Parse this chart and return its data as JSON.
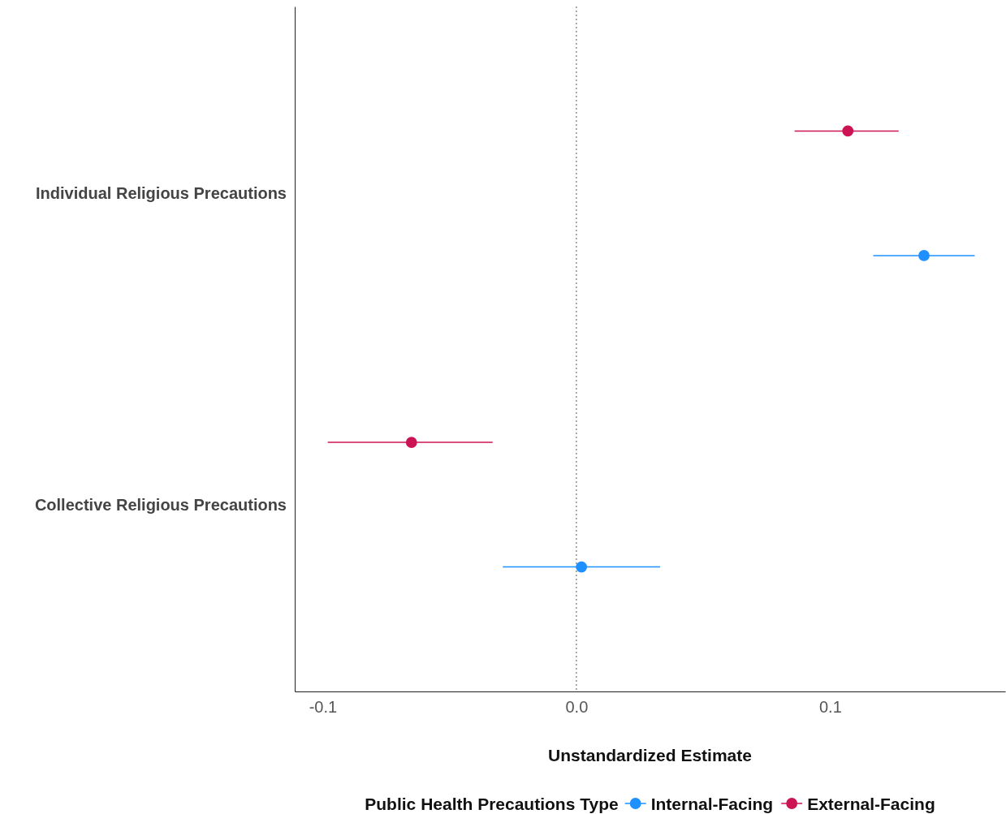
{
  "chart_data": {
    "type": "scatter",
    "orientation": "horizontal",
    "xlabel": "Unstandardized Estimate",
    "legend_title": "Public Health Precautions Type",
    "legend": "bottom",
    "marker": "circle",
    "grid": false,
    "categories": [
      "Individual Religious Precautions",
      "Collective Religious Precautions"
    ],
    "xlim": [
      -0.111,
      0.169
    ],
    "xticks": [
      {
        "value": -0.1,
        "label": "-0.1"
      },
      {
        "value": 0,
        "label": "0.0"
      },
      {
        "value": 0.1,
        "label": "0.1"
      }
    ],
    "series": [
      {
        "name": "Internal-Facing",
        "color": "#1e90ff",
        "values": [
          0.137,
          0.002
        ],
        "errors": [
          [
            0.117,
            0.157
          ],
          [
            -0.029,
            0.033
          ]
        ]
      },
      {
        "name": "External-Facing",
        "color": "#cc1455",
        "values": [
          0.107,
          -0.065
        ],
        "errors": [
          [
            0.086,
            0.127
          ],
          [
            -0.098,
            -0.033
          ]
        ]
      }
    ],
    "ref_lines": [
      {
        "axis": "x",
        "value": 0,
        "line_style": "dotted",
        "color": "#555555"
      }
    ]
  }
}
